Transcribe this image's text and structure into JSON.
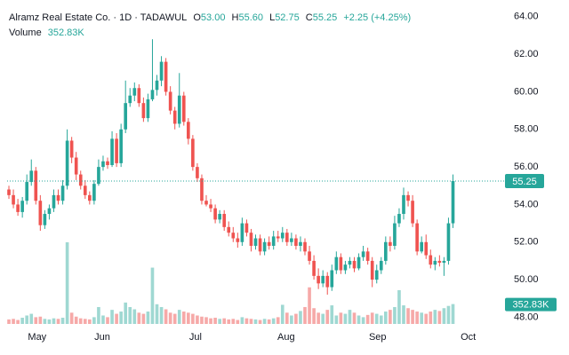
{
  "header": {
    "symbol": "Alramz Real Estate Co. · 1D · TADAWUL",
    "o_label": "O",
    "o": "53.00",
    "h_label": "H",
    "h": "55.60",
    "l_label": "L",
    "l": "52.75",
    "c_label": "C",
    "c": "55.25",
    "change": "+2.25 (+4.25%)",
    "volume_label": "Volume",
    "volume": "352.83K"
  },
  "chart_data": {
    "type": "candlestick",
    "up_color": "#26a69a",
    "down_color": "#ef5350",
    "volume_up_color": "#9fd8d2",
    "volume_down_color": "#f6a9a8",
    "xlim": [
      -0.4,
      110
    ],
    "xticks": [
      {
        "value": 6.3,
        "label": "May"
      },
      {
        "value": 20.8,
        "label": "Jun"
      },
      {
        "value": 41.6,
        "label": "Jul"
      },
      {
        "value": 61.8,
        "label": "Aug"
      },
      {
        "value": 82.2,
        "label": "Sep"
      },
      {
        "value": 102.4,
        "label": "Oct"
      }
    ],
    "ylim": [
      47.5,
      64.7
    ],
    "yticks": [
      {
        "value": 48,
        "label": "48.00"
      },
      {
        "value": 50,
        "label": "50.00"
      },
      {
        "value": 52,
        "label": "52.00"
      },
      {
        "value": 54,
        "label": "54.00"
      },
      {
        "value": 56,
        "label": "56.00"
      },
      {
        "value": 58,
        "label": "58.00"
      },
      {
        "value": 60,
        "label": "60.00"
      },
      {
        "value": 62,
        "label": "62.00"
      },
      {
        "value": 64,
        "label": "64.00"
      }
    ],
    "x": [
      0,
      1,
      2,
      3,
      4,
      5,
      6,
      7,
      8,
      9,
      10,
      11,
      12,
      13,
      14,
      15,
      16,
      17,
      18,
      19,
      20,
      21,
      22,
      23,
      24,
      25,
      26,
      27,
      28,
      29,
      30,
      31,
      32,
      33,
      34,
      35,
      36,
      37,
      38,
      39,
      40,
      41,
      42,
      43,
      44,
      45,
      46,
      47,
      48,
      49,
      50,
      51,
      52,
      53,
      54,
      55,
      56,
      57,
      58,
      59,
      60,
      61,
      62,
      63,
      64,
      65,
      66,
      67,
      68,
      69,
      70,
      71,
      72,
      73,
      74,
      75,
      76,
      77,
      78,
      79,
      80,
      81,
      82,
      83,
      84,
      85,
      86,
      87,
      88,
      89,
      90,
      91,
      92,
      93,
      94,
      95,
      96,
      97,
      98,
      99
    ],
    "open": [
      54.8,
      54.5,
      54.0,
      53.6,
      54.2,
      55.2,
      55.8,
      54.2,
      52.9,
      53.5,
      53.8,
      54.5,
      54.2,
      55.0,
      57.4,
      56.5,
      55.6,
      55.0,
      54.5,
      54.2,
      55.1,
      56.0,
      56.3,
      56.1,
      57.5,
      56.2,
      58.0,
      59.4,
      59.8,
      60.2,
      59.4,
      58.6,
      59.6,
      60.1,
      60.6,
      61.6,
      60.0,
      59.0,
      58.3,
      59.8,
      58.4,
      57.5,
      56.0,
      55.4,
      54.2,
      54.0,
      53.8,
      53.2,
      53.5,
      52.8,
      52.5,
      52.2,
      52.0,
      53.0,
      52.5,
      51.8,
      52.2,
      51.5,
      52.0,
      51.8,
      52.3,
      52.2,
      52.5,
      52.0,
      52.2,
      51.8,
      52.0,
      51.5,
      51.0,
      50.2,
      49.8,
      50.2,
      49.6,
      50.5,
      51.2,
      50.5,
      50.8,
      51.0,
      50.6,
      51.2,
      51.5,
      51.0,
      50.0,
      50.5,
      51.0,
      52.0,
      51.8,
      53.0,
      53.5,
      54.5,
      54.2,
      53.0,
      51.5,
      52.0,
      51.3,
      50.8,
      51.0,
      50.9,
      51.0,
      53.0
    ],
    "high": [
      55.0,
      54.8,
      54.3,
      54.4,
      55.6,
      56.4,
      56.0,
      54.5,
      53.7,
      54.0,
      54.8,
      54.8,
      55.3,
      58.0,
      57.6,
      56.8,
      55.8,
      55.3,
      54.7,
      55.3,
      56.4,
      56.6,
      56.5,
      57.9,
      57.8,
      58.3,
      60.6,
      60.2,
      60.5,
      60.4,
      59.7,
      59.9,
      62.8,
      60.9,
      61.9,
      61.8,
      60.3,
      59.2,
      61.0,
      60.0,
      58.6,
      57.7,
      56.2,
      55.6,
      54.5,
      54.3,
      54.0,
      53.7,
      53.7,
      53.1,
      52.8,
      52.5,
      53.3,
      53.2,
      52.7,
      52.4,
      52.4,
      52.2,
      52.3,
      52.6,
      52.6,
      52.8,
      52.7,
      52.5,
      52.4,
      52.3,
      52.2,
      51.8,
      51.3,
      50.6,
      50.5,
      50.4,
      50.8,
      51.5,
      51.4,
      51.0,
      51.2,
      51.2,
      51.4,
      51.8,
      51.7,
      51.2,
      50.8,
      51.2,
      52.3,
      52.3,
      53.4,
      53.8,
      54.9,
      54.7,
      54.5,
      53.2,
      52.3,
      52.4,
      51.6,
      51.2,
      51.3,
      51.2,
      53.3,
      55.6
    ],
    "low": [
      54.3,
      53.8,
      53.4,
      53.3,
      54.0,
      55.0,
      54.0,
      52.6,
      52.7,
      53.2,
      53.6,
      54.0,
      54.0,
      54.8,
      56.2,
      55.3,
      54.8,
      54.3,
      54.0,
      54.0,
      55.0,
      55.8,
      55.9,
      56.0,
      56.0,
      56.0,
      57.8,
      59.2,
      59.5,
      59.2,
      58.4,
      58.4,
      59.5,
      59.8,
      60.3,
      59.8,
      58.8,
      58.0,
      58.1,
      58.2,
      57.2,
      55.8,
      55.2,
      54.0,
      53.9,
      53.6,
      53.0,
      53.0,
      52.6,
      52.3,
      52.0,
      51.7,
      51.8,
      52.3,
      51.5,
      51.6,
      51.3,
      51.3,
      51.6,
      51.6,
      52.0,
      52.0,
      51.8,
      51.8,
      51.6,
      51.5,
      51.3,
      50.8,
      50.0,
      49.5,
      49.6,
      49.2,
      49.4,
      50.3,
      50.3,
      50.3,
      50.6,
      50.4,
      50.5,
      51.0,
      50.8,
      49.6,
      49.8,
      50.3,
      50.8,
      51.5,
      51.6,
      52.8,
      53.2,
      53.9,
      52.8,
      51.3,
      51.4,
      51.1,
      50.6,
      50.5,
      50.7,
      50.2,
      50.8,
      52.75
    ],
    "close": [
      54.5,
      54.0,
      53.6,
      54.2,
      55.2,
      55.8,
      54.2,
      52.9,
      53.5,
      53.8,
      54.5,
      54.2,
      55.0,
      57.4,
      56.5,
      55.6,
      55.0,
      54.5,
      54.2,
      55.1,
      56.0,
      56.3,
      56.1,
      57.5,
      56.2,
      58.0,
      59.4,
      59.8,
      60.2,
      59.4,
      58.6,
      59.6,
      60.1,
      60.6,
      61.6,
      60.0,
      59.0,
      58.3,
      59.8,
      58.4,
      57.5,
      56.0,
      55.4,
      54.2,
      54.0,
      53.8,
      53.2,
      53.5,
      52.8,
      52.5,
      52.2,
      52.0,
      53.0,
      52.5,
      51.8,
      52.2,
      51.5,
      52.0,
      51.8,
      52.3,
      52.2,
      52.5,
      52.0,
      52.2,
      51.8,
      52.0,
      51.5,
      51.0,
      50.2,
      49.8,
      50.2,
      49.6,
      50.5,
      51.2,
      50.5,
      50.8,
      51.0,
      50.6,
      51.2,
      51.5,
      51.0,
      50.0,
      50.5,
      51.0,
      52.0,
      51.8,
      53.0,
      53.5,
      54.5,
      54.2,
      53.0,
      51.5,
      52.0,
      51.3,
      50.8,
      51.0,
      50.9,
      51.0,
      53.0,
      55.25
    ],
    "volume": [
      80,
      90,
      70,
      110,
      150,
      180,
      120,
      130,
      90,
      80,
      100,
      90,
      110,
      1450,
      200,
      130,
      100,
      90,
      80,
      120,
      300,
      150,
      120,
      250,
      180,
      220,
      380,
      300,
      260,
      200,
      180,
      220,
      1000,
      350,
      300,
      260,
      200,
      180,
      250,
      220,
      200,
      180,
      150,
      130,
      120,
      100,
      110,
      90,
      100,
      80,
      90,
      70,
      120,
      100,
      90,
      80,
      70,
      90,
      80,
      100,
      120,
      340,
      200,
      150,
      180,
      230,
      300,
      650,
      280,
      200,
      180,
      250,
      330,
      150,
      200,
      180,
      250,
      200,
      150,
      120,
      160,
      200,
      180,
      150,
      220,
      250,
      300,
      600,
      330,
      280,
      250,
      220,
      200,
      180,
      220,
      250,
      230,
      280,
      320,
      352.83
    ]
  }
}
